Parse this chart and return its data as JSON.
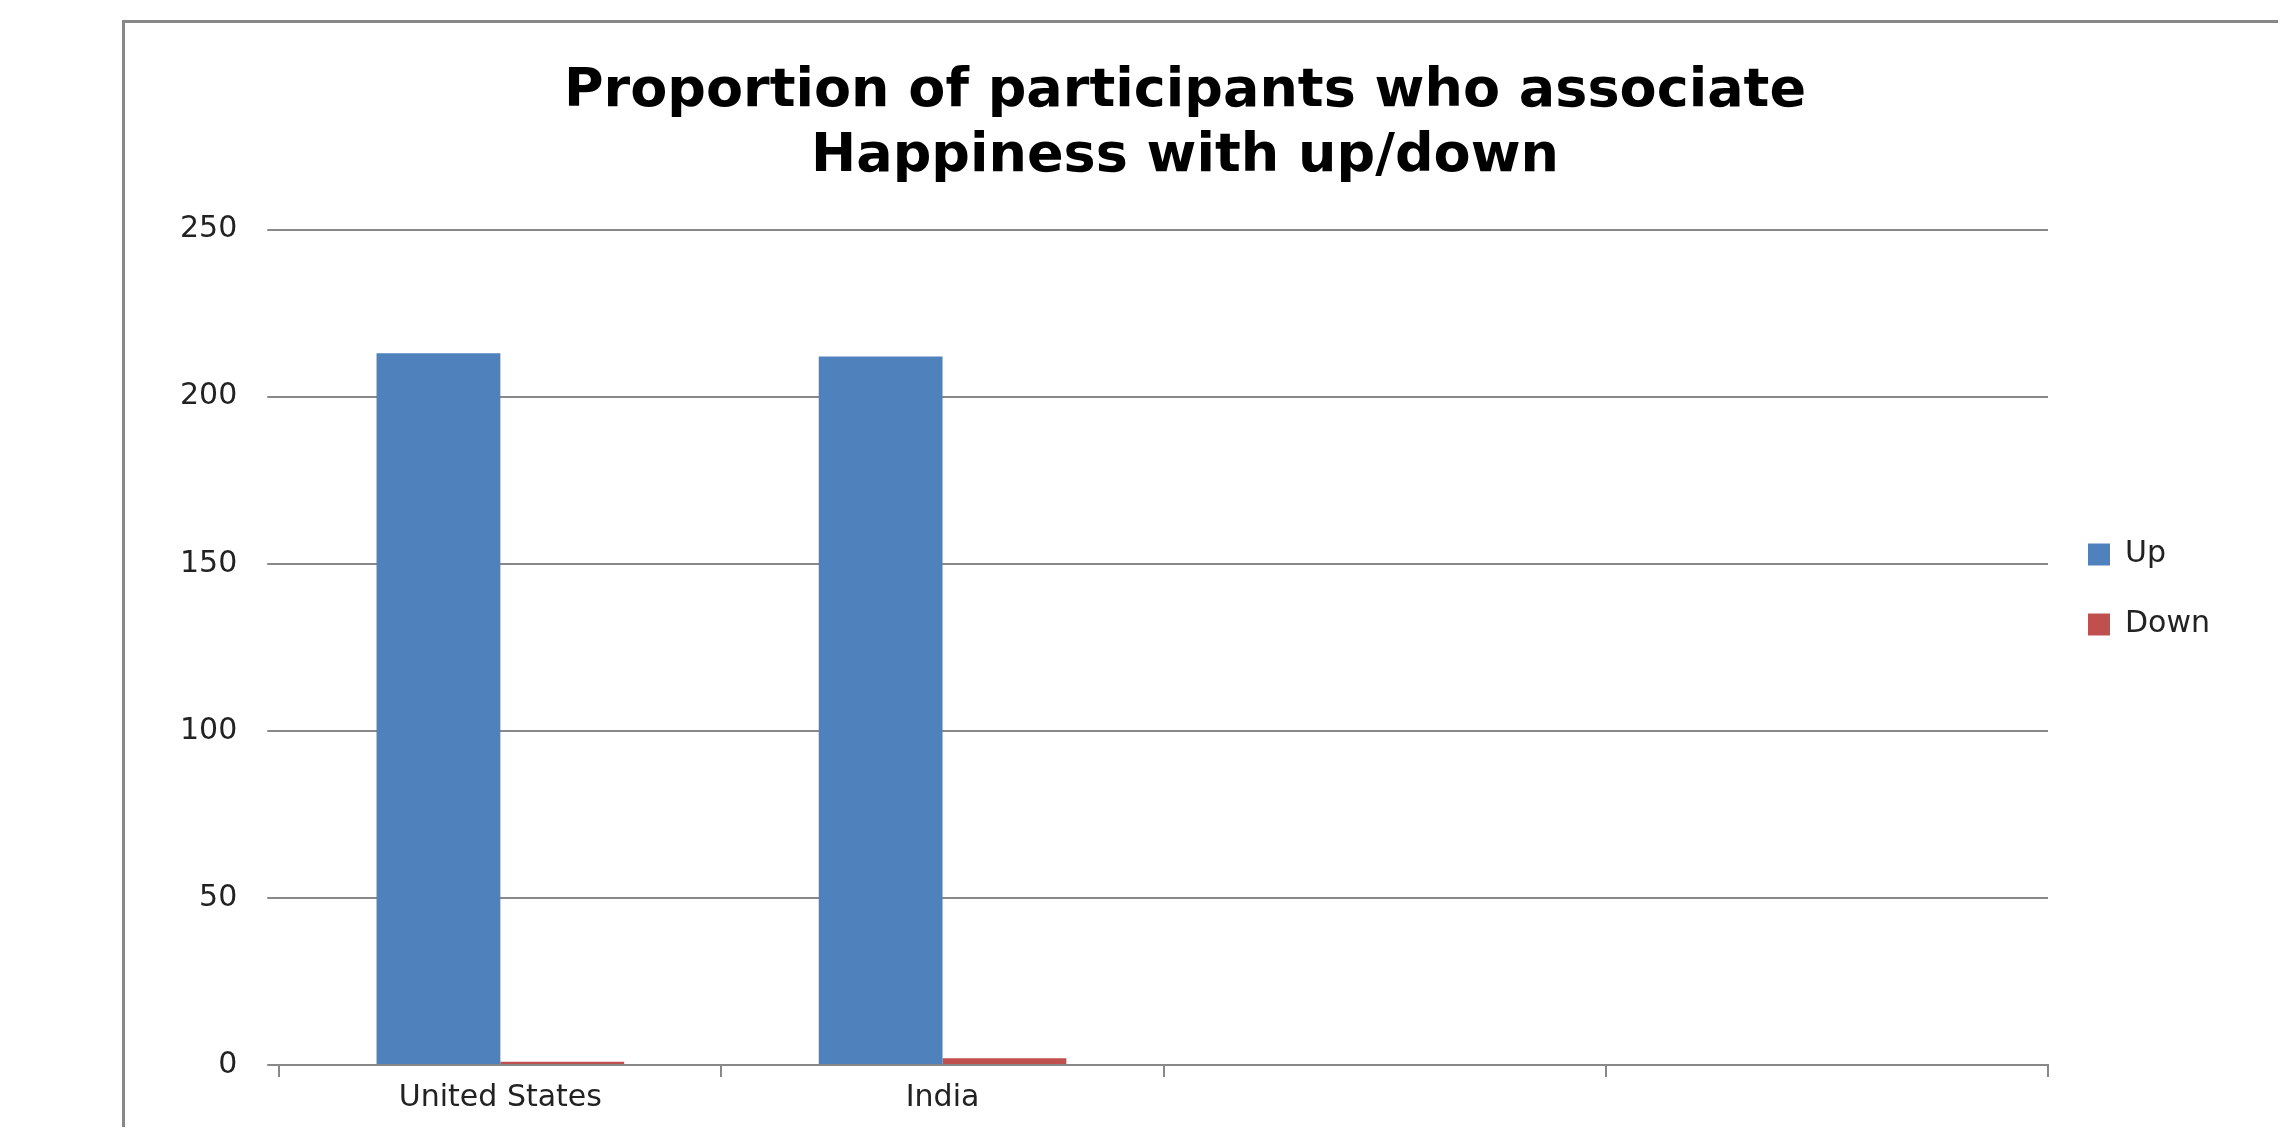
{
  "chart_data": {
    "type": "bar",
    "title": "Proportion of participants who associate Happiness with up/down",
    "categories": [
      "United States",
      "India",
      null,
      null
    ],
    "series": [
      {
        "name": "Up",
        "color": "#4f81bd",
        "values": [
          213,
          212,
          null,
          null
        ]
      },
      {
        "name": "Down",
        "color": "#c0504d",
        "values": [
          1,
          2,
          null,
          null
        ]
      }
    ],
    "ylim": [
      0,
      250
    ],
    "yticks": [
      0,
      50,
      100,
      150,
      200,
      250
    ],
    "grid": "y",
    "legend": "right"
  }
}
